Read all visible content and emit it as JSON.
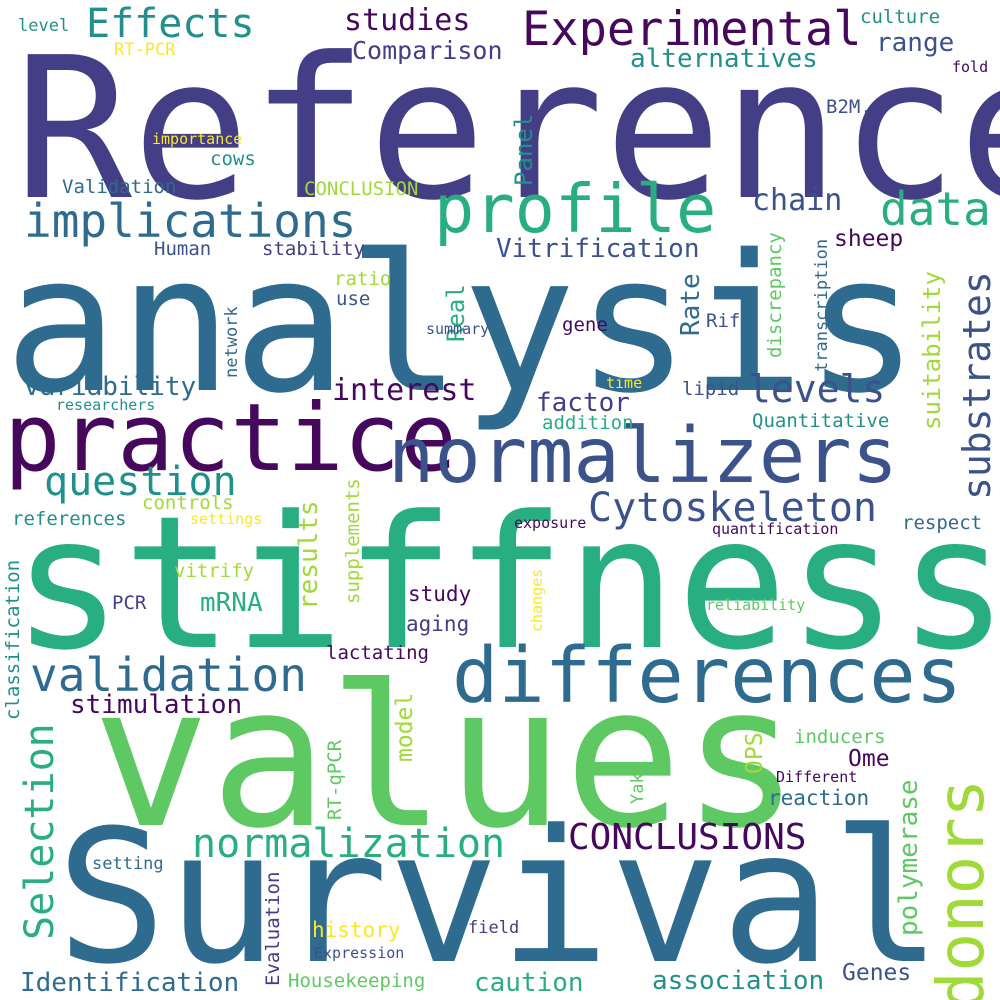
{
  "palette": {
    "dark_purple": "#46085C",
    "indigo": "#433E85",
    "steel_blue": "#2E6B8E",
    "slate_blue": "#3B528B",
    "teal": "#21908C",
    "green_teal": "#28AE80",
    "green": "#5EC962",
    "lime": "#A0DA39",
    "yellow": "#FDE725"
  },
  "words": [
    {
      "text": "Reference",
      "color": "#433E85"
    },
    {
      "text": "analysis",
      "color": "#2E6B8E"
    },
    {
      "text": "stiffness",
      "color": "#28AE80"
    },
    {
      "text": "values",
      "color": "#5EC962"
    },
    {
      "text": "Survival",
      "color": "#2E6B8E"
    },
    {
      "text": "practice",
      "color": "#46085C"
    },
    {
      "text": "normalizers",
      "color": "#3B528B"
    },
    {
      "text": "differences",
      "color": "#2E6B8E"
    },
    {
      "text": "profile",
      "color": "#28AE80"
    },
    {
      "text": "Experimental",
      "color": "#46085C"
    },
    {
      "text": "Effects",
      "color": "#21908C"
    },
    {
      "text": "implications",
      "color": "#2E6B8E"
    },
    {
      "text": "data",
      "color": "#28AE80"
    },
    {
      "text": "donors",
      "color": "#A0DA39"
    },
    {
      "text": "substrates",
      "color": "#3B528B"
    },
    {
      "text": "validation",
      "color": "#2E6B8E"
    },
    {
      "text": "question",
      "color": "#21908C"
    },
    {
      "text": "Cytoskeleton",
      "color": "#3B528B"
    },
    {
      "text": "normalization",
      "color": "#28AE80"
    },
    {
      "text": "CONCLUSIONS",
      "color": "#46085C"
    },
    {
      "text": "Selection",
      "color": "#28AE80"
    },
    {
      "text": "levels",
      "color": "#3B528B"
    },
    {
      "text": "studies",
      "color": "#46085C"
    },
    {
      "text": "Comparison",
      "color": "#433E85"
    },
    {
      "text": "alternatives",
      "color": "#21908C"
    },
    {
      "text": "range",
      "color": "#3B528B"
    },
    {
      "text": "culture",
      "color": "#21908C"
    },
    {
      "text": "level",
      "color": "#21908C"
    },
    {
      "text": "RT-PCR",
      "color": "#FDE725"
    },
    {
      "text": "fold",
      "color": "#46085C"
    },
    {
      "text": "B2M.",
      "color": "#3B528B"
    },
    {
      "text": "importance",
      "color": "#FDE725"
    },
    {
      "text": "cows",
      "color": "#21908C"
    },
    {
      "text": "Validation",
      "color": "#2E6B8E"
    },
    {
      "text": "CONCLUSION",
      "color": "#A0DA39"
    },
    {
      "text": "Panel",
      "color": "#21908C"
    },
    {
      "text": "chain",
      "color": "#3B528B"
    },
    {
      "text": "Human",
      "color": "#3B528B"
    },
    {
      "text": "stability",
      "color": "#433E85"
    },
    {
      "text": "Vitrification",
      "color": "#3B528B"
    },
    {
      "text": "sheep",
      "color": "#46085C"
    },
    {
      "text": "discrepancy",
      "color": "#5EC962"
    },
    {
      "text": "transcription",
      "color": "#2E6B8E"
    },
    {
      "text": "suitability",
      "color": "#A0DA39"
    },
    {
      "text": "ratio",
      "color": "#A0DA39"
    },
    {
      "text": "use",
      "color": "#3B528B"
    },
    {
      "text": "network",
      "color": "#2E6B8E"
    },
    {
      "text": "Real",
      "color": "#28AE80"
    },
    {
      "text": "Rate",
      "color": "#2E6B8E"
    },
    {
      "text": "Rif",
      "color": "#3B528B"
    },
    {
      "text": "summary",
      "color": "#3B528B"
    },
    {
      "text": "gene",
      "color": "#46085C"
    },
    {
      "text": "variability",
      "color": "#2E6B8E"
    },
    {
      "text": "interest",
      "color": "#46085C"
    },
    {
      "text": "time",
      "color": "#FDE725"
    },
    {
      "text": "lipid",
      "color": "#3B528B"
    },
    {
      "text": "researchers",
      "color": "#21908C"
    },
    {
      "text": "factor",
      "color": "#433E85"
    },
    {
      "text": "addition",
      "color": "#28AE80"
    },
    {
      "text": "Quantitative",
      "color": "#21908C"
    },
    {
      "text": "controls",
      "color": "#A0DA39"
    },
    {
      "text": "settings",
      "color": "#FDE725"
    },
    {
      "text": "references",
      "color": "#21908C"
    },
    {
      "text": "results",
      "color": "#A0DA39"
    },
    {
      "text": "supplements",
      "color": "#A0DA39"
    },
    {
      "text": "exposure",
      "color": "#46085C"
    },
    {
      "text": "quantification",
      "color": "#46085C"
    },
    {
      "text": "respect",
      "color": "#2E6B8E"
    },
    {
      "text": "classification",
      "color": "#21908C"
    },
    {
      "text": "vitrify",
      "color": "#A0DA39"
    },
    {
      "text": "changes",
      "color": "#FDE725"
    },
    {
      "text": "mRNA",
      "color": "#28AE80"
    },
    {
      "text": "PCR",
      "color": "#433E85"
    },
    {
      "text": "study",
      "color": "#46085C"
    },
    {
      "text": "reliability",
      "color": "#5EC962"
    },
    {
      "text": "aging",
      "color": "#433E85"
    },
    {
      "text": "lactating",
      "color": "#46085C"
    },
    {
      "text": "stimulation",
      "color": "#46085C"
    },
    {
      "text": "model",
      "color": "#A0DA39"
    },
    {
      "text": "inducers",
      "color": "#5EC962"
    },
    {
      "text": "polymerase",
      "color": "#5EC962"
    },
    {
      "text": "OPS",
      "color": "#A0DA39"
    },
    {
      "text": "Ome",
      "color": "#46085C"
    },
    {
      "text": "RT-qPCR",
      "color": "#5EC962"
    },
    {
      "text": "Different",
      "color": "#46085C"
    },
    {
      "text": "Yak",
      "color": "#5EC962"
    },
    {
      "text": "reaction",
      "color": "#2E6B8E"
    },
    {
      "text": "setting",
      "color": "#2E6B8E"
    },
    {
      "text": "Evaluation",
      "color": "#433E85"
    },
    {
      "text": "history",
      "color": "#FDE725"
    },
    {
      "text": "field",
      "color": "#433E85"
    },
    {
      "text": "Expression",
      "color": "#3B528B"
    },
    {
      "text": "Identification",
      "color": "#2E6B8E"
    },
    {
      "text": "Housekeeping",
      "color": "#5EC962"
    },
    {
      "text": "caution",
      "color": "#28AE80"
    },
    {
      "text": "association",
      "color": "#21908C"
    },
    {
      "text": "Genes",
      "color": "#3B528B"
    }
  ]
}
